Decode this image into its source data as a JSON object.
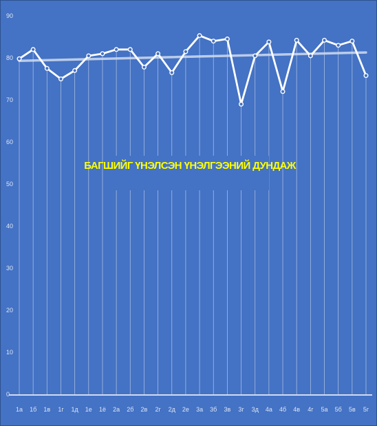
{
  "chart_data": {
    "type": "line",
    "title": "БАГШИЙГ ҮНЭЛСЭН ҮНЭЛГЭЭНИЙ ДУНДАЖ",
    "xlabel": "",
    "ylabel": "",
    "ylim": [
      0,
      90
    ],
    "yticks": [
      0,
      10,
      20,
      30,
      40,
      50,
      60,
      70,
      80,
      90
    ],
    "grid": "vertical",
    "categories": [
      "1а",
      "1б",
      "1в",
      "1г",
      "1д",
      "1е",
      "1ё",
      "2а",
      "2б",
      "2в",
      "2г",
      "2д",
      "2е",
      "3а",
      "3б",
      "3в",
      "3г",
      "3д",
      "4а",
      "4б",
      "4в",
      "4г",
      "5а",
      "5б",
      "5в",
      "5г"
    ],
    "series": [
      {
        "values": [
          79.8,
          82.0,
          77.5,
          75.0,
          77.0,
          80.5,
          81.0,
          82.0,
          82.0,
          77.8,
          81.0,
          76.5,
          81.5,
          85.3,
          84.0,
          84.5,
          69.0,
          80.5,
          83.8,
          72.0,
          84.2,
          80.5,
          84.2,
          83.0,
          84.0,
          75.8
        ],
        "color": "#ffffff"
      }
    ],
    "trendline": {
      "start": 79.3,
      "end": 81.3,
      "color": "#d0dcf0"
    },
    "colors": {
      "background": "#4472c4",
      "gridline": "#c8d6ee",
      "axis": "#ffffff",
      "title": "#ffff00"
    }
  }
}
